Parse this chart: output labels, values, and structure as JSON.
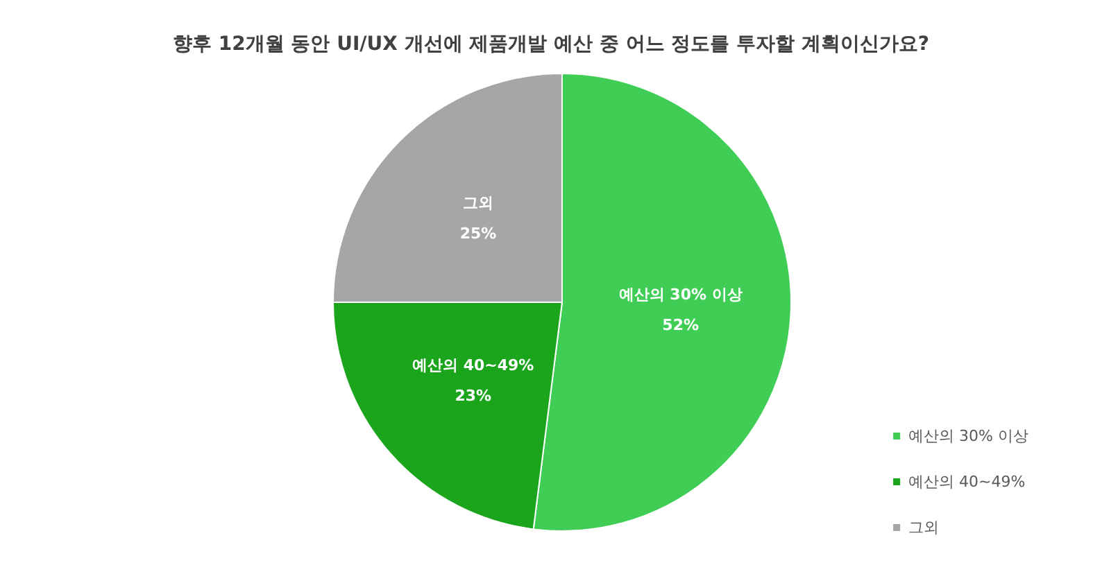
{
  "chart_data": {
    "type": "pie",
    "title": "향후 12개월 동안 UI/UX 개선에 제품개발 예산 중 어느 정도를 투자할 계획이신가요?",
    "categories": [
      "예산의 30% 이상",
      "예산의 40~49%",
      "그외"
    ],
    "values": [
      52,
      23,
      25
    ],
    "colors": [
      "#40cd56",
      "#1aa51c",
      "#a6a6a6"
    ],
    "value_labels": [
      "52%",
      "23%",
      "25%"
    ],
    "legend": "bottom right"
  }
}
